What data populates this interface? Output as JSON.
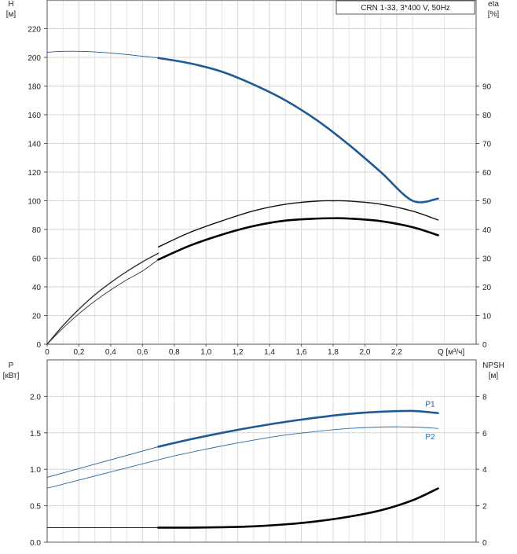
{
  "chart_data": [
    {
      "type": "line",
      "title": "CRN 1-33, 3*400 V, 50Hz",
      "xlabel": "Q [м³/ч]",
      "x_tick_labels": [
        "0",
        "0,2",
        "0,4",
        "0,6",
        "0,8",
        "1,0",
        "1,2",
        "1,4",
        "1,6",
        "1,8",
        "2,0",
        "2,2"
      ],
      "x_ticks": [
        0,
        0.2,
        0.4,
        0.6,
        0.8,
        1.0,
        1.2,
        1.4,
        1.6,
        1.8,
        2.0,
        2.2
      ],
      "xlim": [
        0,
        2.7
      ],
      "grid": true,
      "y_left": {
        "label_line1": "H",
        "label_line2": "[м]",
        "ylim": [
          0,
          240
        ],
        "ticks": [
          0,
          20,
          40,
          60,
          80,
          100,
          120,
          140,
          160,
          180,
          200,
          220
        ]
      },
      "y_right": {
        "label_line1": "eta",
        "label_line2": "[%]",
        "ylim": [
          0,
          120
        ],
        "ticks": [
          0,
          10,
          20,
          30,
          40,
          50,
          60,
          70,
          80,
          90
        ]
      },
      "series": [
        {
          "axis": "left",
          "color": "#1f5a96",
          "x": [
            0,
            0.1,
            0.2,
            0.3,
            0.4,
            0.5,
            0.6,
            0.7
          ],
          "y": [
            203.6,
            204.2,
            204.2,
            203.8,
            203.0,
            202.0,
            200.8,
            199.6
          ],
          "style": "thin"
        },
        {
          "axis": "left",
          "color": "#1f5a96",
          "x": [
            0.7,
            0.9,
            1.1,
            1.3,
            1.5,
            1.7,
            1.9,
            2.1,
            2.3,
            2.46
          ],
          "y": [
            199.6,
            195.8,
            190.0,
            181.0,
            170.0,
            156.0,
            139.0,
            120.0,
            100.0,
            101.5
          ],
          "style": "thick"
        },
        {
          "axis": "right",
          "color": "#333333",
          "x": [
            0,
            0.1,
            0.2,
            0.3,
            0.4,
            0.5,
            0.6,
            0.7
          ],
          "y": [
            0,
            6.5,
            12.2,
            17.2,
            21.5,
            25.3,
            28.7,
            31.7
          ],
          "style": "thin-upper"
        },
        {
          "axis": "right",
          "color": "#111111",
          "x": [
            0.7,
            0.9,
            1.1,
            1.3,
            1.5,
            1.7,
            1.8,
            1.9,
            2.1,
            2.3,
            2.46
          ],
          "y": [
            33.9,
            39.0,
            43.0,
            46.5,
            48.8,
            49.9,
            50.0,
            49.9,
            48.8,
            46.4,
            43.3
          ],
          "style": "thin-upper"
        },
        {
          "axis": "right",
          "color": "#333333",
          "x": [
            0,
            0.1,
            0.2,
            0.3,
            0.4,
            0.5,
            0.6,
            0.7
          ],
          "y": [
            0,
            5.6,
            10.6,
            15.0,
            18.9,
            22.4,
            25.5,
            29.5
          ],
          "style": "thin"
        },
        {
          "axis": "right",
          "color": "#000000",
          "x": [
            0.7,
            0.9,
            1.1,
            1.3,
            1.5,
            1.7,
            1.8,
            1.9,
            2.1,
            2.3,
            2.46
          ],
          "y": [
            29.5,
            34.4,
            38.2,
            41.2,
            43.1,
            43.8,
            43.9,
            43.8,
            42.9,
            40.8,
            38.0
          ],
          "style": "thick"
        }
      ]
    },
    {
      "type": "line",
      "xlim": [
        0,
        2.7
      ],
      "grid": true,
      "y_left": {
        "label_line1": "P",
        "label_line2": "[кВт]",
        "ylim": [
          0,
          2.5
        ],
        "ticks": [
          0.0,
          0.5,
          1.0,
          1.5,
          2.0
        ],
        "tick_labels": [
          "0.0",
          "0.5",
          "1.0",
          "1.5",
          "2.0"
        ]
      },
      "y_right": {
        "label_line1": "NPSH",
        "label_line2": "[м]",
        "ylim": [
          0,
          10
        ],
        "ticks": [
          0,
          2,
          4,
          6,
          8
        ]
      },
      "series": [
        {
          "name": "P1",
          "axis": "left",
          "color": "#1f5a96",
          "x": [
            0,
            0.7,
            0.9,
            1.1,
            1.3,
            1.5,
            1.7,
            1.9,
            2.1,
            2.3,
            2.46
          ],
          "y": [
            0.89,
            1.31,
            1.41,
            1.5,
            1.58,
            1.65,
            1.71,
            1.76,
            1.79,
            1.8,
            1.77
          ],
          "style": "thick-from-0.7"
        },
        {
          "name": "P2",
          "axis": "left",
          "color": "#2a6aaa",
          "x": [
            0,
            0.7,
            0.9,
            1.1,
            1.3,
            1.5,
            1.7,
            1.9,
            2.1,
            2.3,
            2.46
          ],
          "y": [
            0.74,
            1.13,
            1.23,
            1.32,
            1.4,
            1.47,
            1.52,
            1.56,
            1.58,
            1.58,
            1.56
          ],
          "style": "thin"
        },
        {
          "axis": "right",
          "color": "#000000",
          "x": [
            0,
            0.7,
            0.9,
            1.1,
            1.3,
            1.5,
            1.7,
            1.9,
            2.1,
            2.3,
            2.46
          ],
          "y": [
            0.8,
            0.8,
            0.8,
            0.82,
            0.87,
            0.98,
            1.15,
            1.4,
            1.75,
            2.3,
            2.95
          ],
          "style": "thick-from-0.7"
        }
      ]
    }
  ]
}
